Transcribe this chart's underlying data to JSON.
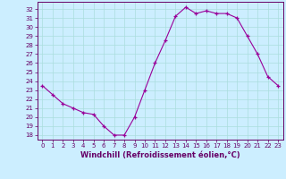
{
  "x": [
    0,
    1,
    2,
    3,
    4,
    5,
    6,
    7,
    8,
    9,
    10,
    11,
    12,
    13,
    14,
    15,
    16,
    17,
    18,
    19,
    20,
    21,
    22,
    23
  ],
  "y": [
    23.5,
    22.5,
    21.5,
    21.0,
    20.5,
    20.3,
    19.0,
    18.0,
    18.0,
    20.0,
    23.0,
    26.0,
    28.5,
    31.2,
    32.2,
    31.5,
    31.8,
    31.5,
    31.5,
    31.0,
    29.0,
    27.0,
    24.5,
    23.5
  ],
  "xlabel": "Windchill (Refroidissement éolien,°C)",
  "xlim": [
    -0.5,
    23.5
  ],
  "ylim": [
    17.5,
    32.8
  ],
  "yticks": [
    18,
    19,
    20,
    21,
    22,
    23,
    24,
    25,
    26,
    27,
    28,
    29,
    30,
    31,
    32
  ],
  "xticks": [
    0,
    1,
    2,
    3,
    4,
    5,
    6,
    7,
    8,
    9,
    10,
    11,
    12,
    13,
    14,
    15,
    16,
    17,
    18,
    19,
    20,
    21,
    22,
    23
  ],
  "line_color": "#990099",
  "marker": "+",
  "bg_color": "#cceeff",
  "grid_color": "#aadddd",
  "tick_color": "#660066",
  "label_color": "#660066",
  "spine_color": "#660066"
}
